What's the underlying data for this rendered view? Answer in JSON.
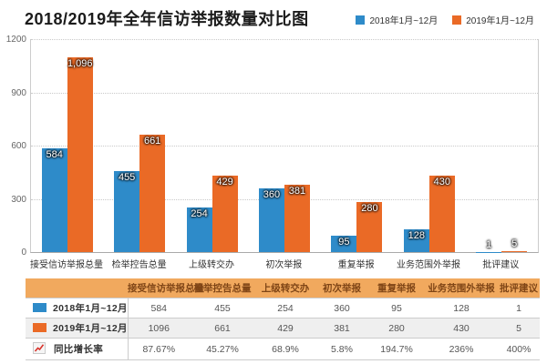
{
  "title": "2018/2019年全年信访举报数量对比图",
  "colors": {
    "series_2018": "#2E8BC9",
    "series_2019": "#EA6A26",
    "table_header_bg": "#F1A95E",
    "table_header_text": "#7F4516",
    "row_alt_bg": "#EFEFEF",
    "border": "#CCCCCC",
    "growth_line": "#D9332B"
  },
  "legend": [
    {
      "label": "2018年1月~12月",
      "color": "#2E8BC9"
    },
    {
      "label": "2019年1月~12月",
      "color": "#EA6A26"
    }
  ],
  "chart_data": {
    "type": "bar",
    "title": "2018/2019年全年信访举报数量对比图",
    "categories": [
      "接受信访举报总量",
      "检举控告总量",
      "上级转交办",
      "初次举报",
      "重复举报",
      "业务范围外举报",
      "批评建议"
    ],
    "series": [
      {
        "name": "2018年1月~12月",
        "color": "#2E8BC9",
        "values": [
          584,
          455,
          254,
          360,
          95,
          128,
          1
        ],
        "value_labels": [
          "584",
          "455",
          "254",
          "360",
          "95",
          "128",
          "1"
        ]
      },
      {
        "name": "2019年1月~12月",
        "color": "#EA6A26",
        "values": [
          1096,
          661,
          429,
          381,
          280,
          430,
          5
        ],
        "value_labels": [
          "1,096",
          "661",
          "429",
          "381",
          "280",
          "430",
          "5"
        ]
      }
    ],
    "ylabel": "",
    "xlabel": "",
    "ylim": [
      0,
      1200
    ],
    "yticks": [
      0,
      300,
      600,
      900,
      1200
    ],
    "grid": "horizontal-dotted",
    "legend_position": "top-right"
  },
  "table": {
    "col_headers": [
      "",
      "接受信访举报总量",
      "检举控告总量",
      "上级转交办",
      "初次举报",
      "重复举报",
      "业务范围外举报",
      "批评建议"
    ],
    "rows": [
      {
        "label": "2018年1月~12月",
        "swatch": "blue",
        "values": [
          "584",
          "455",
          "254",
          "360",
          "95",
          "128",
          "1"
        ]
      },
      {
        "label": "2019年1月~12月",
        "swatch": "orange",
        "values": [
          "1096",
          "661",
          "429",
          "381",
          "280",
          "430",
          "5"
        ]
      },
      {
        "label": "同比增长率",
        "swatch": "growth",
        "values": [
          "87.67%",
          "45.27%",
          "68.9%",
          "5.8%",
          "194.7%",
          "236%",
          "400%"
        ]
      }
    ]
  }
}
